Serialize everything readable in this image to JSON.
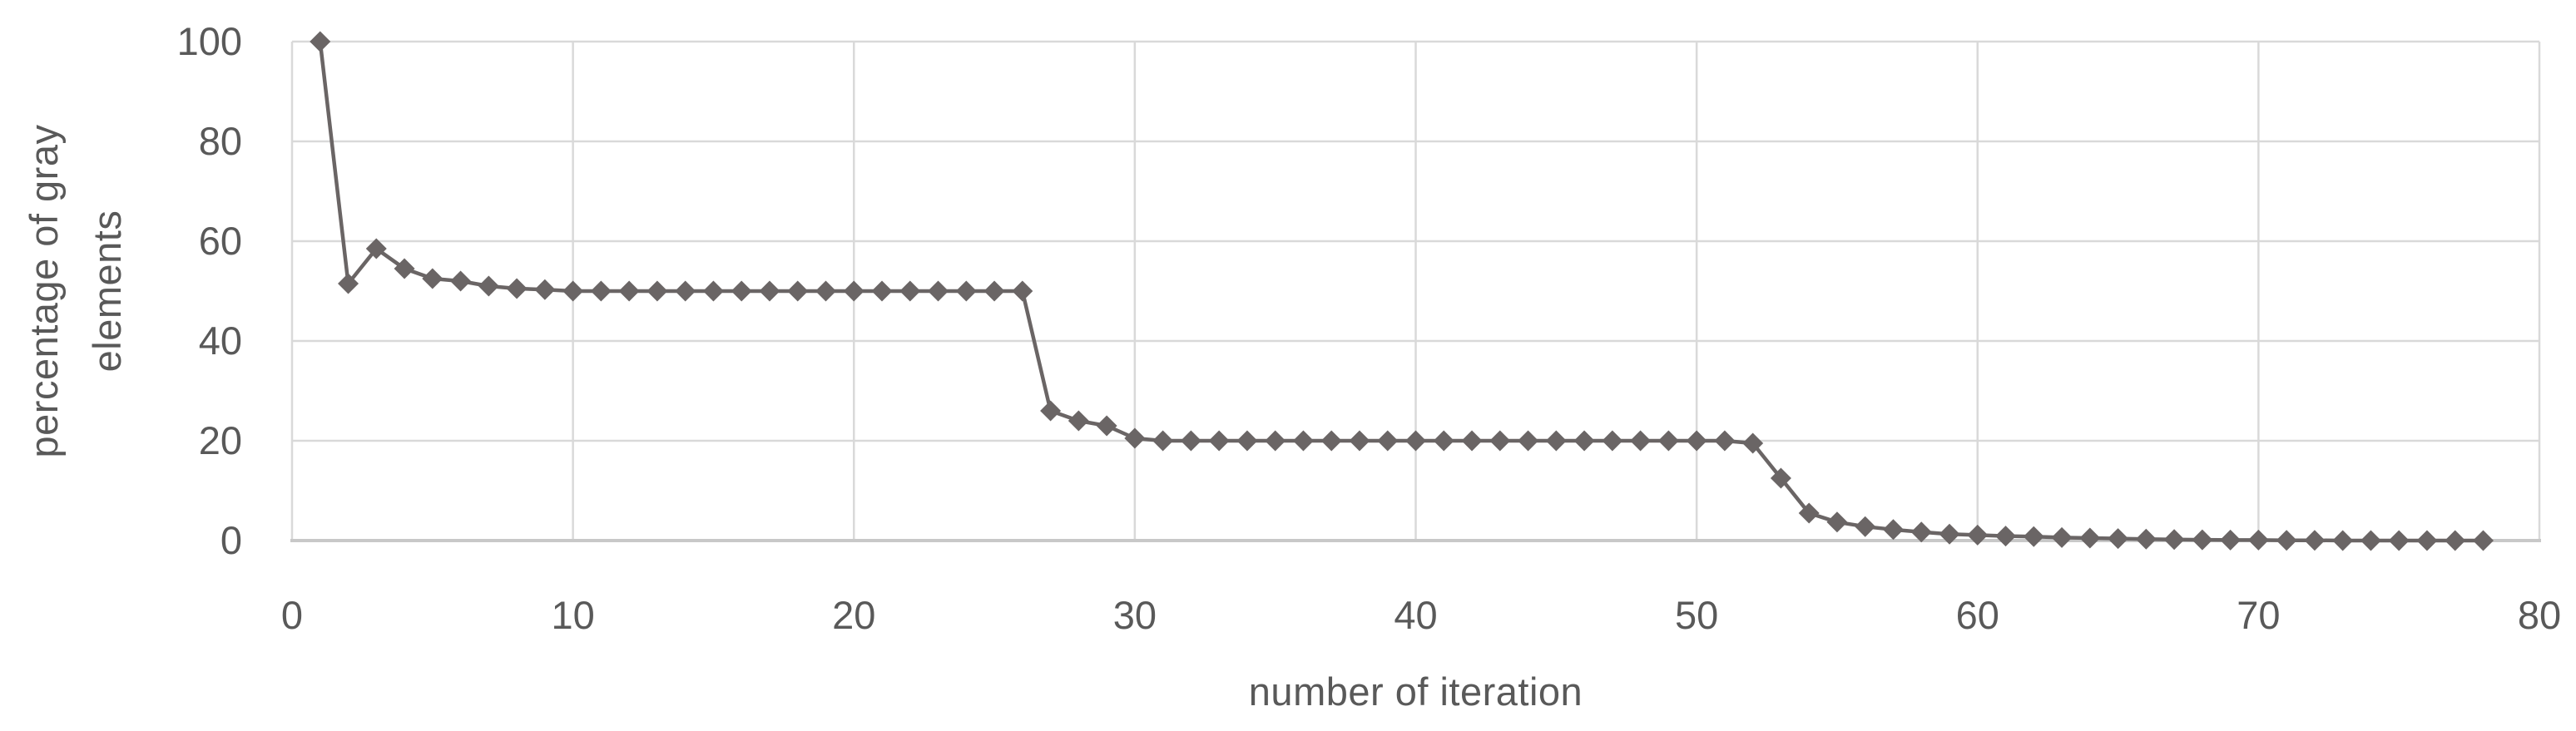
{
  "chart_data": {
    "type": "line",
    "title": "",
    "xlabel": "number of iteration",
    "ylabel": "percentage of gray elements",
    "ylabel_line1": "percentage of gray",
    "ylabel_line2": "elements",
    "legend_position": "none",
    "grid": "both",
    "marker": "diamond",
    "xlim": [
      0,
      80
    ],
    "ylim": [
      0,
      100
    ],
    "xticks": [
      0,
      10,
      20,
      30,
      40,
      50,
      60,
      70,
      80
    ],
    "yticks": [
      0,
      20,
      40,
      60,
      80,
      100
    ],
    "x": [
      1,
      2,
      3,
      4,
      5,
      6,
      7,
      8,
      9,
      10,
      11,
      12,
      13,
      14,
      15,
      16,
      17,
      18,
      19,
      20,
      21,
      22,
      23,
      24,
      25,
      26,
      27,
      28,
      29,
      30,
      31,
      32,
      33,
      34,
      35,
      36,
      37,
      38,
      39,
      40,
      41,
      42,
      43,
      44,
      45,
      46,
      47,
      48,
      49,
      50,
      51,
      52,
      53,
      54,
      55,
      56,
      57,
      58,
      59,
      60,
      61,
      62,
      63,
      64,
      65,
      66,
      67,
      68,
      69,
      70,
      71,
      72,
      73,
      74,
      75,
      76,
      77,
      78
    ],
    "series": [
      {
        "name": "percentage of gray elements",
        "values": [
          100,
          51.5,
          58.5,
          54.5,
          52.5,
          52,
          51,
          50.5,
          50.3,
          50,
          50,
          50,
          50,
          50,
          50,
          50,
          50,
          50,
          50,
          50,
          50,
          50,
          50,
          50,
          50,
          50,
          26,
          24,
          23,
          20.5,
          20,
          20,
          20,
          20,
          20,
          20,
          20,
          20,
          20,
          20,
          20,
          20,
          20,
          20,
          20,
          20,
          20,
          20,
          20,
          20,
          20,
          19.5,
          12.5,
          5.5,
          3.7,
          2.8,
          2.2,
          1.7,
          1.3,
          1.1,
          0.9,
          0.8,
          0.6,
          0.5,
          0.4,
          0.3,
          0.2,
          0.15,
          0.1,
          0.1,
          0.05,
          0.05,
          0,
          0,
          0,
          0,
          0,
          0
        ]
      }
    ],
    "colors": {
      "series": "#6a6565",
      "gridline": "#d9d9d9",
      "axis_line": "#c8c8c8",
      "label_text": "#595959",
      "background": "#ffffff"
    }
  }
}
